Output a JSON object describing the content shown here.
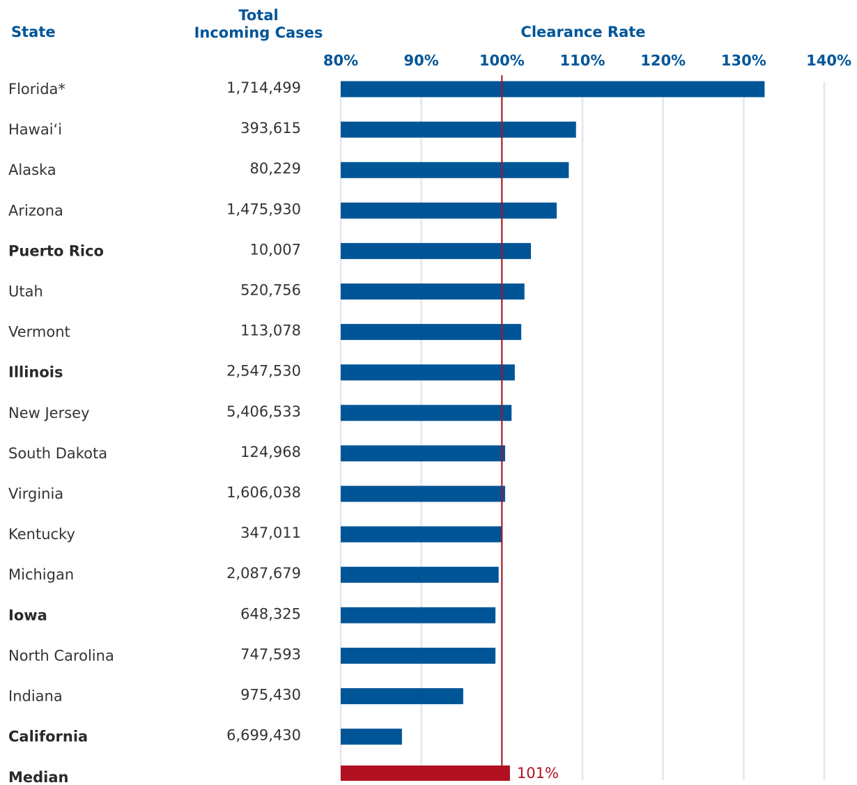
{
  "chart_data": {
    "type": "bar",
    "orientation": "horizontal",
    "headers": {
      "state": "State",
      "cases_line1": "Total",
      "cases_line2": "Incoming Cases",
      "rate": "Clearance Rate"
    },
    "xlim": [
      80,
      140
    ],
    "ticks": [
      80,
      90,
      100,
      110,
      120,
      130,
      140
    ],
    "tick_labels": [
      "80%",
      "90%",
      "100%",
      "110%",
      "120%",
      "130%",
      "140%"
    ],
    "reference_line": 100,
    "grid": true,
    "rows": [
      {
        "state": "Florida*",
        "cases": "1,714,499",
        "rate": 132.6,
        "bold": false
      },
      {
        "state": "Hawai‘i",
        "cases": "393,615",
        "rate": 109.2,
        "bold": false
      },
      {
        "state": "Alaska",
        "cases": "80,229",
        "rate": 108.3,
        "bold": false
      },
      {
        "state": "Arizona",
        "cases": "1,475,930",
        "rate": 106.8,
        "bold": false
      },
      {
        "state": "Puerto Rico",
        "cases": "10,007",
        "rate": 103.6,
        "bold": true
      },
      {
        "state": "Utah",
        "cases": "520,756",
        "rate": 102.8,
        "bold": false
      },
      {
        "state": "Vermont",
        "cases": "113,078",
        "rate": 102.4,
        "bold": false
      },
      {
        "state": "Illinois",
        "cases": "2,547,530",
        "rate": 101.6,
        "bold": true
      },
      {
        "state": "New Jersey",
        "cases": "5,406,533",
        "rate": 101.2,
        "bold": false
      },
      {
        "state": "South Dakota",
        "cases": "124,968",
        "rate": 100.4,
        "bold": false
      },
      {
        "state": "Virginia",
        "cases": "1,606,038",
        "rate": 100.4,
        "bold": false
      },
      {
        "state": "Kentucky",
        "cases": "347,011",
        "rate": 100.0,
        "bold": false
      },
      {
        "state": "Michigan",
        "cases": "2,087,679",
        "rate": 99.6,
        "bold": false
      },
      {
        "state": "Iowa",
        "cases": "648,325",
        "rate": 99.2,
        "bold": true
      },
      {
        "state": "North Carolina",
        "cases": "747,593",
        "rate": 99.2,
        "bold": false
      },
      {
        "state": "Indiana",
        "cases": "975,430",
        "rate": 95.2,
        "bold": false
      },
      {
        "state": "California",
        "cases": "6,699,430",
        "rate": 87.6,
        "bold": true
      }
    ],
    "median": {
      "label": "Median",
      "rate": 101,
      "value_label": "101%"
    },
    "colors": {
      "bar": "#005597",
      "median_bar": "#b01020",
      "reference_line": "#b01020",
      "grid": "#e6e9f0",
      "header": "#005597"
    }
  }
}
